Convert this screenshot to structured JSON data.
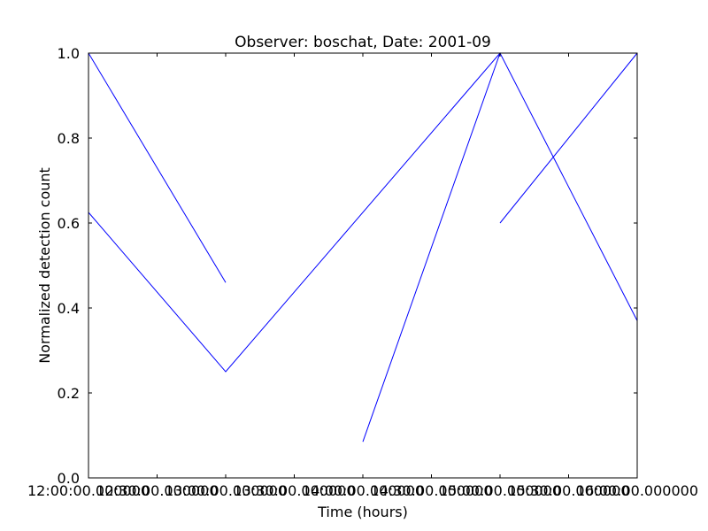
{
  "chart_data": {
    "type": "line",
    "title": "Observer: boschat, Date: 2001-09",
    "xlabel": "Time (hours)",
    "ylabel": "Normalized detection count",
    "x_tick_labels": [
      "12:00:00.000000",
      "12:30:00.000000",
      "13:00:00.000000",
      "13:30:00.000000",
      "14:00:00.000000",
      "14:30:00.000000",
      "15:00:00.000000",
      "15:30:00.000000",
      "16:00:00.000000"
    ],
    "y_tick_labels": [
      "0.0",
      "0.2",
      "0.4",
      "0.6",
      "0.8",
      "1.0"
    ],
    "xlim": [
      "12:00",
      "16:00"
    ],
    "ylim": [
      0,
      1
    ],
    "grid": false,
    "legend": "none",
    "line_color": "#0000ff",
    "series": [
      {
        "x": [
          "12:00",
          "13:00"
        ],
        "y": [
          1.0,
          0.46
        ]
      },
      {
        "x": [
          "12:00",
          "13:00",
          "15:00",
          "16:00"
        ],
        "y": [
          0.625,
          0.25,
          1.0,
          0.37
        ]
      },
      {
        "x": [
          "14:00",
          "15:00"
        ],
        "y": [
          0.085,
          1.0
        ]
      },
      {
        "x": [
          "15:00",
          "16:00"
        ],
        "y": [
          0.6,
          1.0
        ]
      }
    ]
  }
}
